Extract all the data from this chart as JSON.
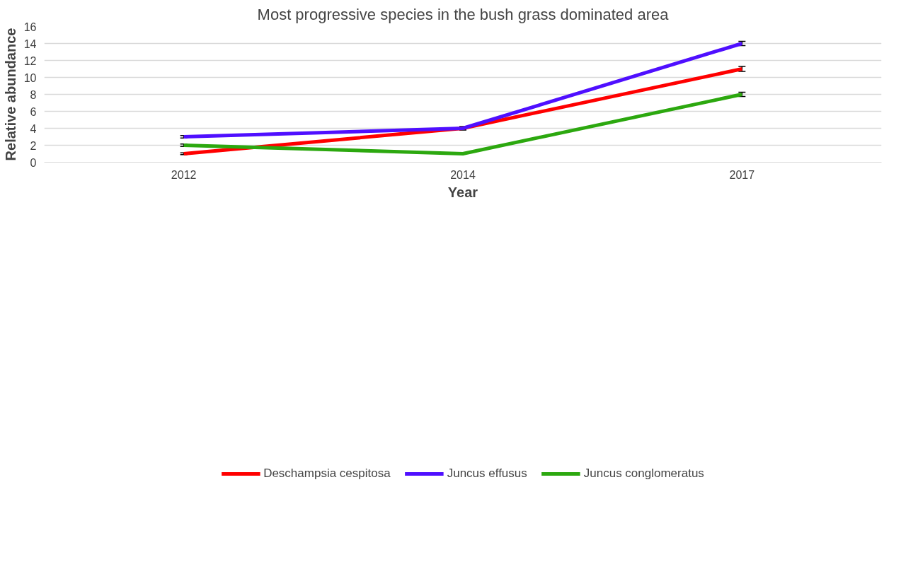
{
  "chart_data": {
    "type": "line",
    "title": "Most progressive species in the bush grass dominated area",
    "xlabel": "Year",
    "ylabel": "Relative abundance",
    "categories": [
      "2012",
      "2014",
      "2017"
    ],
    "series": [
      {
        "name": "Deschampsia cespitosa",
        "color": "#ff0000",
        "values": [
          1,
          4,
          11
        ],
        "errors": [
          0.1,
          0.15,
          0.3
        ]
      },
      {
        "name": "Juncus effusus",
        "color": "#4f0fff",
        "values": [
          3,
          4,
          14
        ],
        "errors": [
          0.15,
          0.2,
          0.25
        ]
      },
      {
        "name": "Juncus conglomeratus",
        "color": "#2ca80f",
        "values": [
          2,
          1,
          8
        ],
        "errors": [
          0.15,
          0.05,
          0.25
        ]
      }
    ],
    "ylim": [
      0,
      16
    ],
    "yticks": [
      0,
      2,
      4,
      6,
      8,
      10,
      12,
      14,
      16
    ],
    "grid": "y",
    "legend": "bottom",
    "marker": "none",
    "line_style": "solid"
  }
}
